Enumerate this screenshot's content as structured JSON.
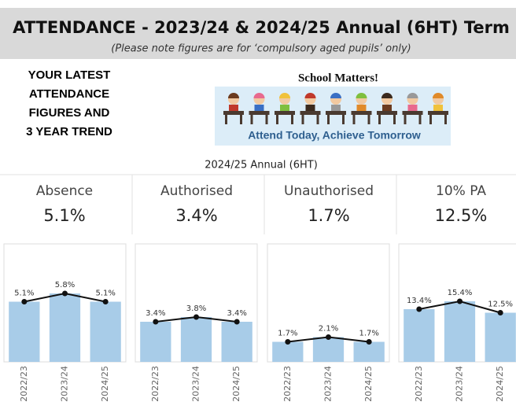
{
  "header": {
    "title": "ATTENDANCE - 2023/24 & 2024/25 Annual (6HT) Term",
    "subtitle": "(Please note figures are for ‘compulsory aged pupils’ only)"
  },
  "intro": {
    "lines": [
      "YOUR LATEST",
      "ATTENDANCE",
      "FIGURES AND",
      "3 YEAR TREND"
    ]
  },
  "banner": {
    "title": "School Matters!",
    "slogan": "Attend Today, Achieve Tomorrow"
  },
  "period": "2024/25 Annual (6HT)",
  "kpis": [
    {
      "label": "Absence",
      "value": "5.1%"
    },
    {
      "label": "Authorised",
      "value": "3.4%"
    },
    {
      "label": "Unauthorised",
      "value": "1.7%"
    },
    {
      "label": "10% PA",
      "value": "12.5%"
    }
  ],
  "chart_data": [
    {
      "type": "bar-line",
      "categories": [
        "2022/23",
        "2023/24",
        "2024/25"
      ],
      "values": [
        5.1,
        5.8,
        5.1
      ],
      "value_labels": [
        "5.1%",
        "5.8%",
        "5.1%"
      ],
      "color": "#a8cce8",
      "line_color": "#111111",
      "ylim": [
        0,
        10
      ]
    },
    {
      "type": "bar-line",
      "categories": [
        "2022/23",
        "2023/24",
        "2024/25"
      ],
      "values": [
        3.4,
        3.8,
        3.4
      ],
      "value_labels": [
        "3.4%",
        "3.8%",
        "3.4%"
      ],
      "color": "#a8cce8",
      "line_color": "#111111",
      "ylim": [
        0,
        10
      ]
    },
    {
      "type": "bar-line",
      "categories": [
        "2022/23",
        "2023/24",
        "2024/25"
      ],
      "values": [
        1.7,
        2.1,
        1.7
      ],
      "value_labels": [
        "1.7%",
        "2.1%",
        "1.7%"
      ],
      "color": "#a8cce8",
      "line_color": "#111111",
      "ylim": [
        0,
        10
      ]
    },
    {
      "type": "bar-line",
      "categories": [
        "2022/23",
        "2023/24",
        "2024/25"
      ],
      "values": [
        13.4,
        15.4,
        12.5
      ],
      "value_labels": [
        "13.4%",
        "15.4%",
        "12.5%"
      ],
      "color": "#a8cce8",
      "line_color": "#111111",
      "ylim": [
        0,
        30
      ]
    }
  ]
}
